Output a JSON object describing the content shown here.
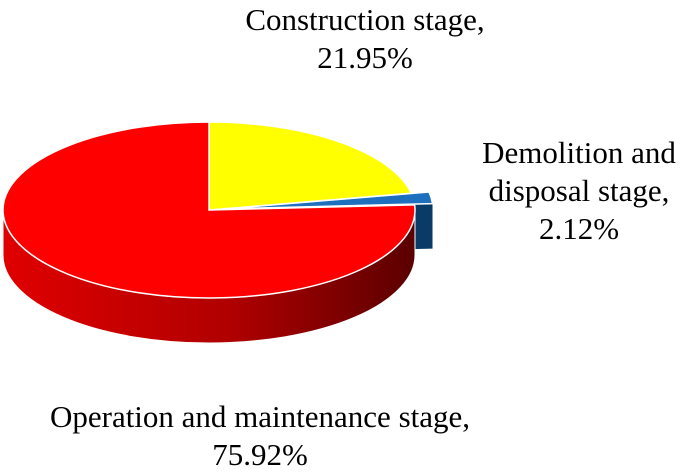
{
  "chart_data": {
    "type": "pie",
    "title": "",
    "slices": [
      {
        "label": "Construction stage,",
        "value": 21.95,
        "value_text": "21.95%",
        "color": "#ffff00"
      },
      {
        "label": "Demolition and disposal stage,",
        "label_lines": [
          "Demolition and",
          "disposal stage,"
        ],
        "value": 2.12,
        "value_text": "2.12%",
        "color": "#1f6fbf",
        "exploded": true
      },
      {
        "label": "Operation and maintenance stage,",
        "value": 75.92,
        "value_text": "75.92%",
        "color": "#ff0000"
      }
    ],
    "style": "3d",
    "legend": "none"
  }
}
